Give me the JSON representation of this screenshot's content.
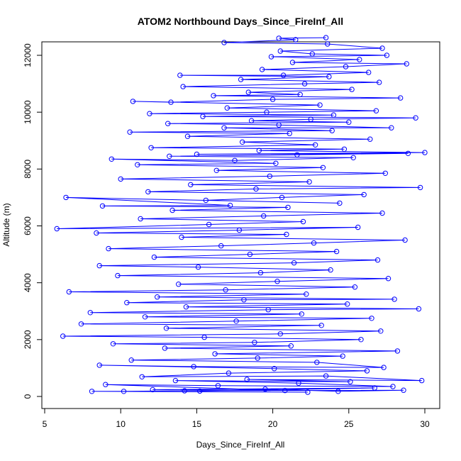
{
  "chart_data": {
    "type": "line",
    "title": "ATOM2 Northbound Days_Since_FireInf_All",
    "xlabel": "Days_Since_FireInf_All",
    "ylabel": "Altitude (m)",
    "xlim": [
      5,
      30
    ],
    "ylim": [
      0,
      12800
    ],
    "xticks": [
      5,
      10,
      15,
      20,
      25,
      30
    ],
    "yticks": [
      0,
      2000,
      4000,
      6000,
      8000,
      10000,
      12000
    ],
    "grid": false,
    "legend": "none",
    "marker": "open-circle",
    "series": [
      {
        "color": "#0000ff",
        "points": [
          [
            22.3,
            150
          ],
          [
            8.1,
            180
          ],
          [
            10.2,
            180
          ],
          [
            14.2,
            200
          ],
          [
            28.6,
            220
          ],
          [
            24.3,
            180
          ],
          [
            19.5,
            260
          ],
          [
            15.2,
            190
          ],
          [
            26.7,
            300
          ],
          [
            12.1,
            240
          ],
          [
            20.8,
            210
          ],
          [
            9.0,
            420
          ],
          [
            16.4,
            380
          ],
          [
            27.9,
            350
          ],
          [
            21.7,
            470
          ],
          [
            13.6,
            560
          ],
          [
            25.1,
            520
          ],
          [
            18.3,
            600
          ],
          [
            29.8,
            560
          ],
          [
            23.5,
            720
          ],
          [
            11.4,
            690
          ],
          [
            17.1,
            820
          ],
          [
            26.2,
            900
          ],
          [
            20.1,
            980
          ],
          [
            8.6,
            1100
          ],
          [
            14.8,
            1050
          ],
          [
            27.3,
            1020
          ],
          [
            22.9,
            1200
          ],
          [
            10.7,
            1280
          ],
          [
            19.0,
            1350
          ],
          [
            24.6,
            1420
          ],
          [
            16.2,
            1500
          ],
          [
            28.2,
            1600
          ],
          [
            12.9,
            1700
          ],
          [
            21.2,
            1780
          ],
          [
            9.5,
            1850
          ],
          [
            18.8,
            1900
          ],
          [
            25.8,
            2000
          ],
          [
            15.5,
            2080
          ],
          [
            6.2,
            2120
          ],
          [
            20.5,
            2200
          ],
          [
            27.1,
            2300
          ],
          [
            13.0,
            2400
          ],
          [
            23.2,
            2500
          ],
          [
            7.4,
            2550
          ],
          [
            17.6,
            2650
          ],
          [
            26.5,
            2750
          ],
          [
            11.6,
            2800
          ],
          [
            21.9,
            2900
          ],
          [
            8.0,
            2950
          ],
          [
            19.7,
            3050
          ],
          [
            29.6,
            3080
          ],
          [
            14.3,
            3150
          ],
          [
            24.9,
            3250
          ],
          [
            10.4,
            3300
          ],
          [
            18.1,
            3400
          ],
          [
            28.0,
            3420
          ],
          [
            12.4,
            3500
          ],
          [
            22.2,
            3600
          ],
          [
            6.6,
            3680
          ],
          [
            16.9,
            3750
          ],
          [
            25.4,
            3850
          ],
          [
            13.8,
            3950
          ],
          [
            20.3,
            4050
          ],
          [
            27.6,
            4150
          ],
          [
            9.8,
            4250
          ],
          [
            19.2,
            4350
          ],
          [
            23.8,
            4450
          ],
          [
            15.1,
            4550
          ],
          [
            8.6,
            4600
          ],
          [
            21.4,
            4700
          ],
          [
            26.9,
            4800
          ],
          [
            12.2,
            4900
          ],
          [
            18.5,
            5000
          ],
          [
            24.2,
            5100
          ],
          [
            9.2,
            5200
          ],
          [
            16.6,
            5300
          ],
          [
            22.7,
            5400
          ],
          [
            28.7,
            5500
          ],
          [
            14.0,
            5600
          ],
          [
            20.9,
            5700
          ],
          [
            8.4,
            5750
          ],
          [
            17.8,
            5850
          ],
          [
            25.6,
            5950
          ],
          [
            5.8,
            5900
          ],
          [
            15.8,
            6050
          ],
          [
            22.0,
            6150
          ],
          [
            11.3,
            6250
          ],
          [
            19.4,
            6350
          ],
          [
            27.2,
            6450
          ],
          [
            13.4,
            6550
          ],
          [
            21.0,
            6650
          ],
          [
            8.8,
            6700
          ],
          [
            17.2,
            6720
          ],
          [
            6.4,
            7000
          ],
          [
            24.4,
            6800
          ],
          [
            15.6,
            6900
          ],
          [
            20.6,
            7000
          ],
          [
            26.0,
            7100
          ],
          [
            11.8,
            7200
          ],
          [
            18.9,
            7300
          ],
          [
            29.7,
            7350
          ],
          [
            14.6,
            7450
          ],
          [
            22.4,
            7550
          ],
          [
            10.0,
            7650
          ],
          [
            19.8,
            7750
          ],
          [
            27.4,
            7850
          ],
          [
            16.3,
            7950
          ],
          [
            23.3,
            8050
          ],
          [
            11.1,
            8150
          ],
          [
            20.2,
            8200
          ],
          [
            9.4,
            8350
          ],
          [
            17.5,
            8300
          ],
          [
            25.3,
            8400
          ],
          [
            13.2,
            8450
          ],
          [
            21.6,
            8500
          ],
          [
            28.9,
            8550
          ],
          [
            15.0,
            8520
          ],
          [
            30.0,
            8580
          ],
          [
            19.1,
            8650
          ],
          [
            24.7,
            8700
          ],
          [
            12.0,
            8750
          ],
          [
            22.8,
            8850
          ],
          [
            18.0,
            8950
          ],
          [
            26.4,
            9050
          ],
          [
            14.4,
            9150
          ],
          [
            21.1,
            9250
          ],
          [
            10.6,
            9300
          ],
          [
            23.9,
            9350
          ],
          [
            16.8,
            9450
          ],
          [
            27.8,
            9450
          ],
          [
            20.4,
            9550
          ],
          [
            13.1,
            9600
          ],
          [
            25.0,
            9650
          ],
          [
            18.6,
            9700
          ],
          [
            22.5,
            9750
          ],
          [
            29.4,
            9800
          ],
          [
            15.4,
            9850
          ],
          [
            24.0,
            9900
          ],
          [
            11.9,
            9950
          ],
          [
            19.6,
            10000
          ],
          [
            26.8,
            10050
          ],
          [
            17.0,
            10150
          ],
          [
            23.1,
            10250
          ],
          [
            10.8,
            10380
          ],
          [
            13.3,
            10350
          ],
          [
            20.0,
            10450
          ],
          [
            28.4,
            10500
          ],
          [
            16.1,
            10580
          ],
          [
            21.8,
            10620
          ],
          [
            18.4,
            10700
          ],
          [
            25.2,
            10800
          ],
          [
            14.1,
            10900
          ],
          [
            22.1,
            11000
          ],
          [
            27.0,
            11050
          ],
          [
            17.9,
            11150
          ],
          [
            23.7,
            11250
          ],
          [
            13.9,
            11300
          ],
          [
            20.7,
            11300
          ],
          [
            26.3,
            11400
          ],
          [
            19.3,
            11500
          ],
          [
            24.8,
            11600
          ],
          [
            28.8,
            11700
          ],
          [
            21.3,
            11750
          ],
          [
            25.7,
            11850
          ],
          [
            19.9,
            11950
          ],
          [
            27.5,
            12000
          ],
          [
            22.6,
            12050
          ],
          [
            20.5,
            12150
          ],
          [
            27.2,
            12250
          ],
          [
            23.6,
            12400
          ],
          [
            16.8,
            12450
          ],
          [
            21.5,
            12550
          ],
          [
            20.4,
            12600
          ],
          [
            23.5,
            12620
          ]
        ]
      }
    ]
  }
}
